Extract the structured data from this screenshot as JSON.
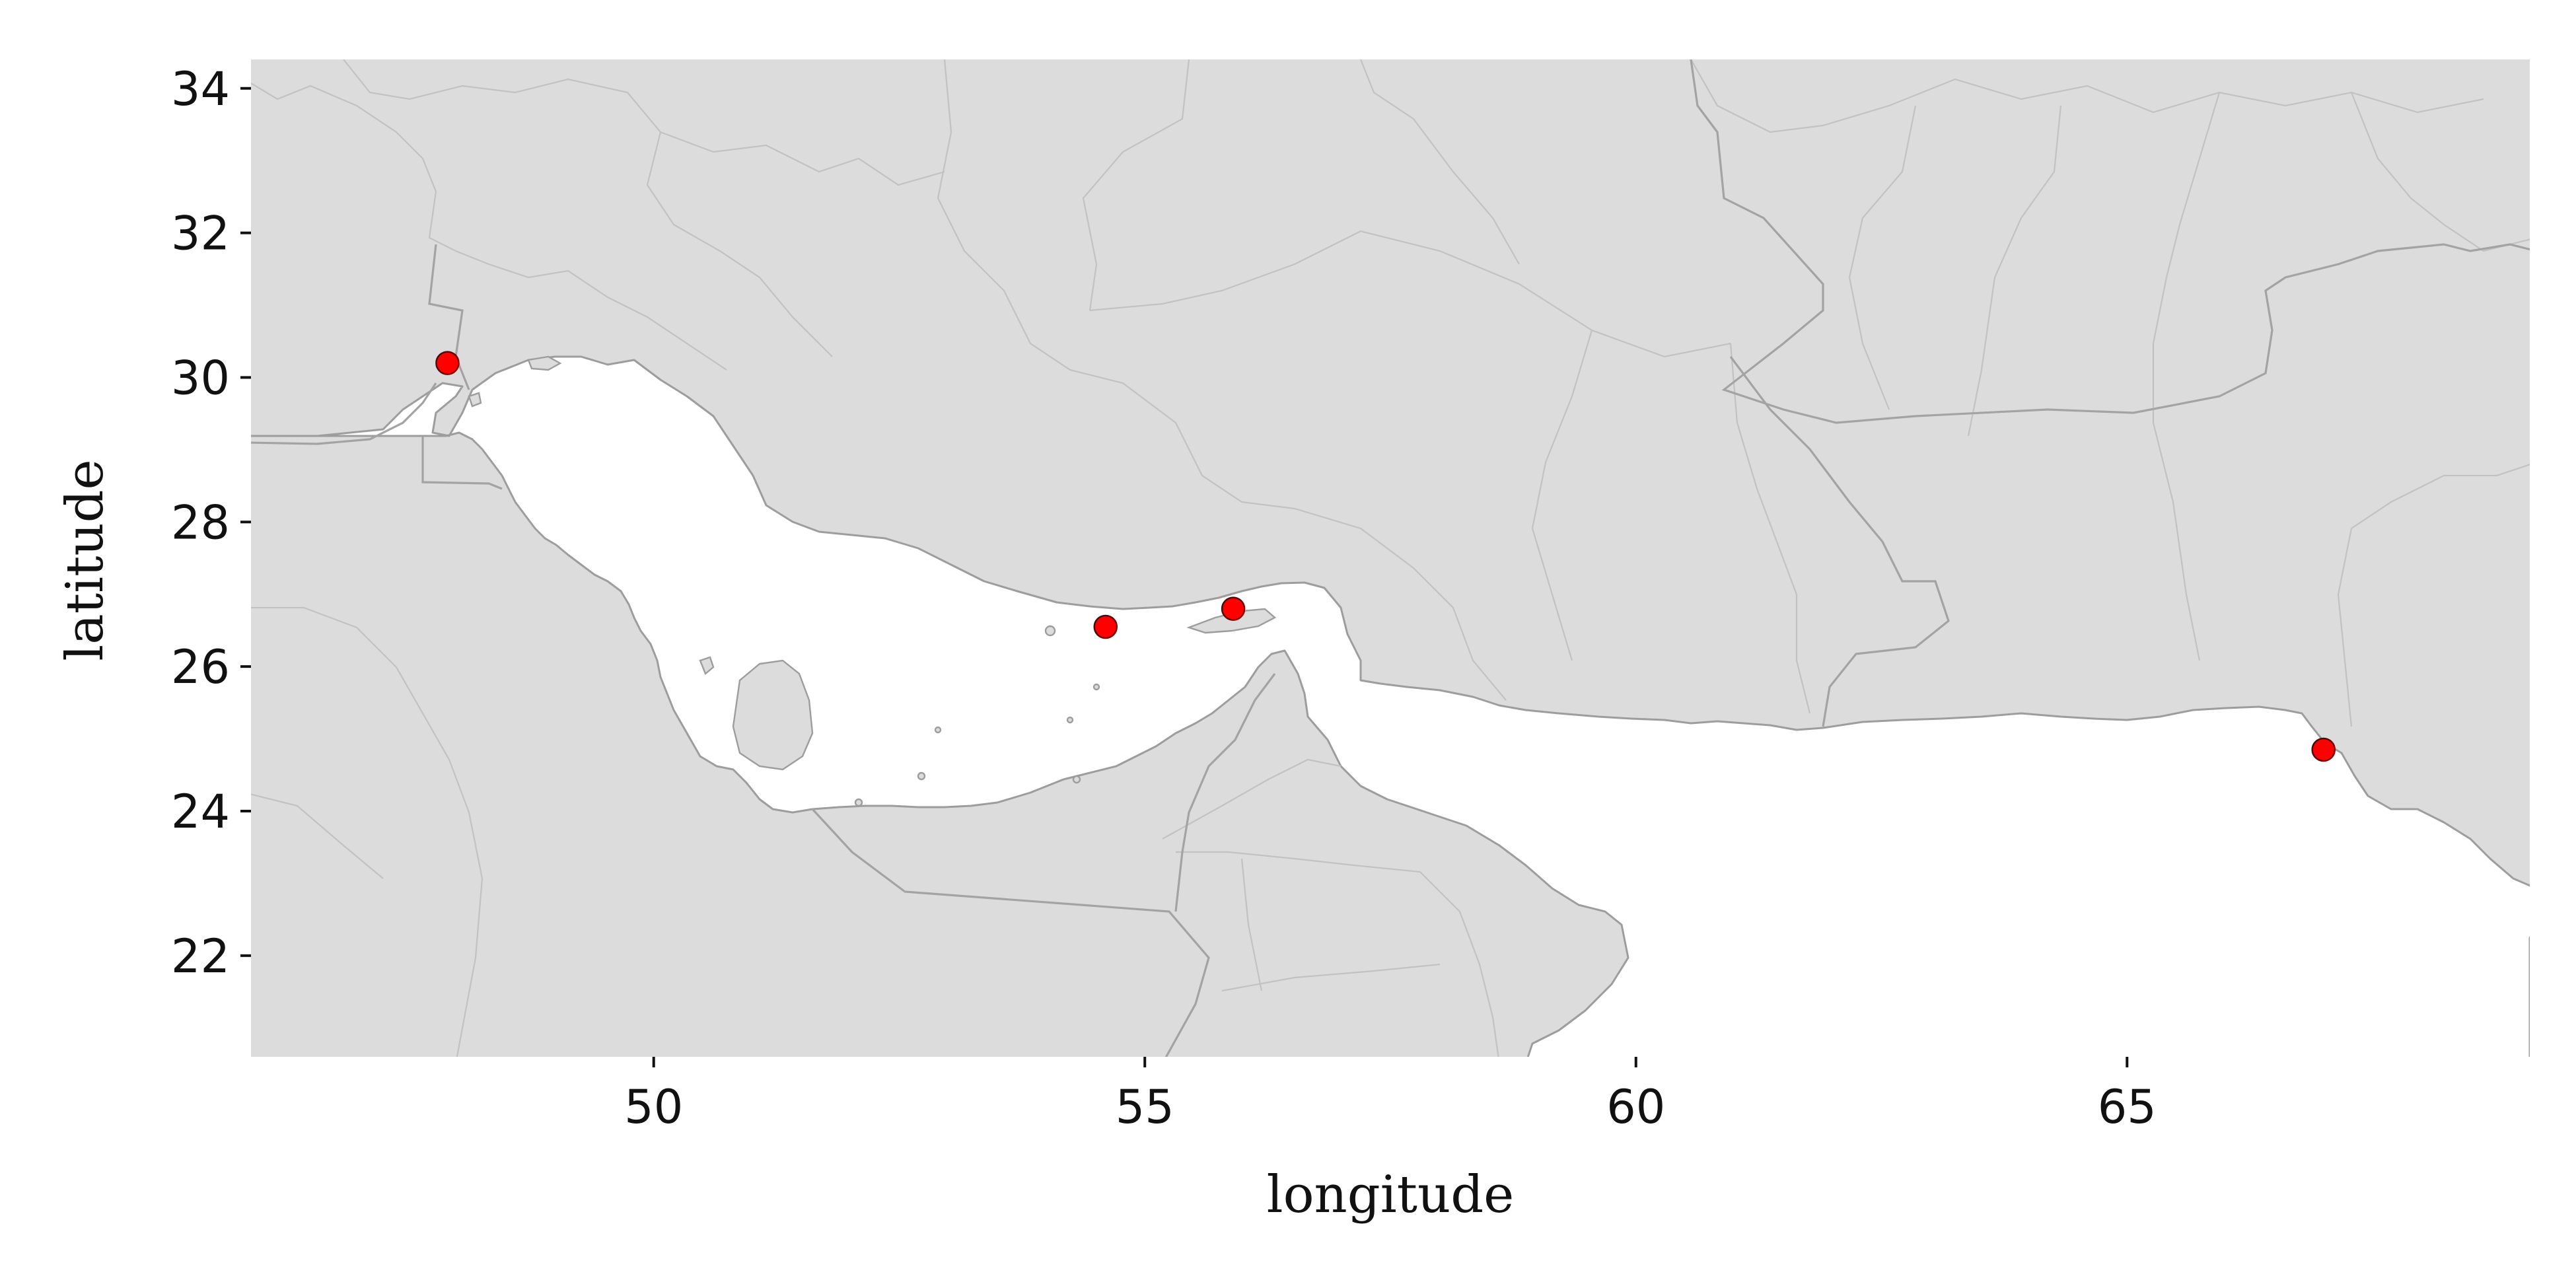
{
  "map": {
    "xlabel": "longitude",
    "ylabel": "latitude",
    "xlim": [
      45.9,
      69.1
    ],
    "ylim": [
      20.6,
      34.4
    ],
    "land_color": "#dcdcdc",
    "border_color": "#9d9d9d",
    "marker_color": "#ff0000",
    "xticks": [
      50,
      55,
      60,
      65
    ],
    "yticks": [
      22,
      24,
      26,
      28,
      30,
      32,
      34
    ],
    "xtick_labels": [
      "50",
      "55",
      "60",
      "65"
    ],
    "ytick_labels": [
      "22",
      "24",
      "26",
      "28",
      "30",
      "32",
      "34"
    ],
    "points": [
      {
        "lon": 47.9,
        "lat": 30.2
      },
      {
        "lon": 54.6,
        "lat": 26.55
      },
      {
        "lon": 55.9,
        "lat": 26.8
      },
      {
        "lon": 67.0,
        "lat": 24.85
      }
    ]
  }
}
